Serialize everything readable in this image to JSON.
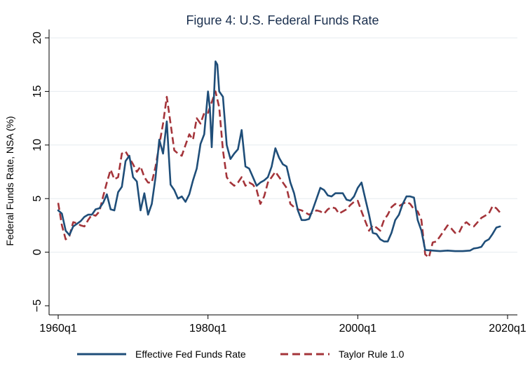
{
  "chart_data": {
    "type": "line",
    "title": "Figure 4: U.S. Federal Funds Rate",
    "xlabel": "",
    "ylabel": "Federal Funds Rate, NSA (%)",
    "xlim": [
      1960,
      2020
    ],
    "ylim": [
      -5,
      20
    ],
    "y_ticks": [
      -5,
      0,
      5,
      10,
      15,
      20
    ],
    "y_tick_labels": [
      "−5",
      "0",
      "5",
      "10",
      "15",
      "20"
    ],
    "x_ticks": [
      1960,
      1980,
      2000,
      2020
    ],
    "x_tick_labels": [
      "1960q1",
      "1980q1",
      "2000q1",
      "2020q1"
    ],
    "grid": true,
    "legend_position": "bottom",
    "series": [
      {
        "name": "Effective Fed Funds Rate",
        "color": "#1f4e79",
        "style": "solid",
        "x": [
          1960,
          1960.5,
          1961,
          1961.5,
          1962,
          1963,
          1963.5,
          1964,
          1964.5,
          1965,
          1965.5,
          1966,
          1966.5,
          1967,
          1967.5,
          1968,
          1968.5,
          1969,
          1969.5,
          1970,
          1970.5,
          1971,
          1971.5,
          1972,
          1972.5,
          1973,
          1973.5,
          1974,
          1974.5,
          1975,
          1975.5,
          1976,
          1976.5,
          1977,
          1977.5,
          1978,
          1978.5,
          1979,
          1979.5,
          1980,
          1980.25,
          1980.5,
          1981,
          1981.25,
          1981.5,
          1982,
          1982.5,
          1983,
          1983.5,
          1984,
          1984.5,
          1985,
          1985.5,
          1986,
          1986.5,
          1987,
          1987.5,
          1988,
          1988.5,
          1989,
          1989.5,
          1990,
          1990.5,
          1991,
          1991.5,
          1992,
          1992.5,
          1993,
          1993.5,
          1994,
          1994.5,
          1995,
          1995.5,
          1996,
          1996.5,
          1997,
          1997.5,
          1998,
          1998.5,
          1999,
          1999.5,
          2000,
          2000.5,
          2001,
          2001.5,
          2002,
          2002.5,
          2003,
          2003.5,
          2004,
          2004.5,
          2005,
          2005.5,
          2006,
          2006.5,
          2007,
          2007.5,
          2008,
          2008.5,
          2009,
          2010,
          2011,
          2012,
          2013,
          2014,
          2015,
          2015.5,
          2016,
          2016.5,
          2017,
          2017.5,
          2018,
          2018.5,
          2019
        ],
        "values": [
          3.9,
          3.6,
          2.0,
          1.6,
          2.4,
          2.9,
          3.3,
          3.5,
          3.5,
          4.0,
          4.1,
          4.6,
          5.4,
          4.0,
          3.9,
          5.6,
          6.1,
          8.5,
          9.0,
          7.0,
          6.6,
          3.9,
          5.5,
          3.5,
          4.5,
          7.0,
          10.5,
          9.2,
          12.2,
          6.3,
          5.8,
          5.0,
          5.2,
          4.7,
          5.4,
          6.7,
          7.8,
          10.1,
          11.0,
          15.0,
          13.5,
          9.8,
          17.8,
          17.5,
          15.0,
          14.5,
          10.0,
          8.7,
          9.2,
          9.6,
          11.4,
          8.0,
          7.8,
          7.0,
          6.2,
          6.5,
          6.7,
          7.0,
          8.0,
          9.7,
          8.8,
          8.2,
          8.0,
          6.5,
          5.5,
          3.9,
          3.0,
          3.0,
          3.1,
          4.0,
          5.0,
          6.0,
          5.8,
          5.3,
          5.2,
          5.5,
          5.5,
          5.5,
          4.9,
          4.8,
          5.2,
          6.0,
          6.5,
          5.0,
          3.5,
          1.8,
          1.7,
          1.2,
          1.0,
          1.0,
          1.8,
          3.0,
          3.5,
          4.5,
          5.2,
          5.2,
          5.1,
          3.0,
          2.0,
          0.2,
          0.15,
          0.1,
          0.15,
          0.1,
          0.1,
          0.15,
          0.35,
          0.4,
          0.5,
          1.0,
          1.2,
          1.7,
          2.3,
          2.4
        ],
        "label_font": "regular"
      },
      {
        "name": "Taylor Rule 1.0",
        "color": "#a4343a",
        "style": "dashed",
        "x": [
          1960,
          1960.5,
          1961,
          1961.5,
          1962,
          1962.5,
          1963,
          1963.5,
          1964,
          1964.5,
          1965,
          1965.5,
          1966,
          1966.5,
          1967,
          1967.5,
          1968,
          1968.5,
          1969,
          1969.5,
          1970,
          1970.5,
          1971,
          1971.5,
          1972,
          1972.5,
          1973,
          1973.5,
          1974,
          1974.5,
          1975,
          1975.5,
          1976,
          1976.5,
          1977,
          1977.5,
          1978,
          1978.5,
          1979,
          1979.5,
          1980,
          1980.5,
          1981,
          1981.5,
          1982,
          1982.5,
          1983,
          1983.5,
          1984,
          1984.5,
          1985,
          1985.5,
          1986,
          1986.5,
          1987,
          1987.5,
          1988,
          1988.5,
          1989,
          1989.5,
          1990,
          1990.5,
          1991,
          1991.5,
          1992,
          1992.5,
          1993,
          1993.5,
          1994,
          1994.5,
          1995,
          1995.5,
          1996,
          1996.5,
          1997,
          1997.5,
          1998,
          1998.5,
          1999,
          1999.5,
          2000,
          2000.5,
          2001,
          2001.5,
          2002,
          2002.5,
          2003,
          2003.5,
          2004,
          2004.5,
          2005,
          2005.5,
          2006,
          2006.5,
          2007,
          2007.5,
          2008,
          2008.5,
          2009,
          2009.5,
          2010,
          2010.5,
          2011,
          2011.5,
          2012,
          2012.5,
          2013,
          2013.5,
          2014,
          2014.5,
          2015,
          2015.5,
          2016,
          2016.5,
          2017,
          2017.5,
          2018,
          2018.5,
          2019
        ],
        "values": [
          4.6,
          2.5,
          1.2,
          1.5,
          2.8,
          2.7,
          2.5,
          2.4,
          3.0,
          3.5,
          3.4,
          3.8,
          5.2,
          6.5,
          7.7,
          6.8,
          7.0,
          9.2,
          9.4,
          8.8,
          8.2,
          7.5,
          8.0,
          7.0,
          6.5,
          6.5,
          8.0,
          10.0,
          12.0,
          14.5,
          12.0,
          9.5,
          9.2,
          9.0,
          10.0,
          11.0,
          10.5,
          12.5,
          12.0,
          13.0,
          13.0,
          14.0,
          15.0,
          13.5,
          9.5,
          7.0,
          6.5,
          6.2,
          6.5,
          7.0,
          6.2,
          6.5,
          6.3,
          5.8,
          4.5,
          5.2,
          6.5,
          7.0,
          7.5,
          7.0,
          6.5,
          6.0,
          4.5,
          4.2,
          4.0,
          3.9,
          3.7,
          3.5,
          3.7,
          3.9,
          3.8,
          3.6,
          4.0,
          4.2,
          4.1,
          3.6,
          3.8,
          4.0,
          4.4,
          4.7,
          4.8,
          3.8,
          2.9,
          2.0,
          2.5,
          2.3,
          2.0,
          3.0,
          3.5,
          4.2,
          4.5,
          4.3,
          4.5,
          4.7,
          4.5,
          4.0,
          3.8,
          3.0,
          -0.2,
          -0.5,
          0.9,
          1.0,
          1.5,
          2.0,
          2.5,
          2.2,
          1.8,
          1.8,
          2.5,
          2.8,
          2.5,
          2.4,
          2.8,
          3.2,
          3.4,
          3.6,
          4.3,
          4.1,
          3.7
        ],
        "label_font": "regular"
      }
    ]
  }
}
